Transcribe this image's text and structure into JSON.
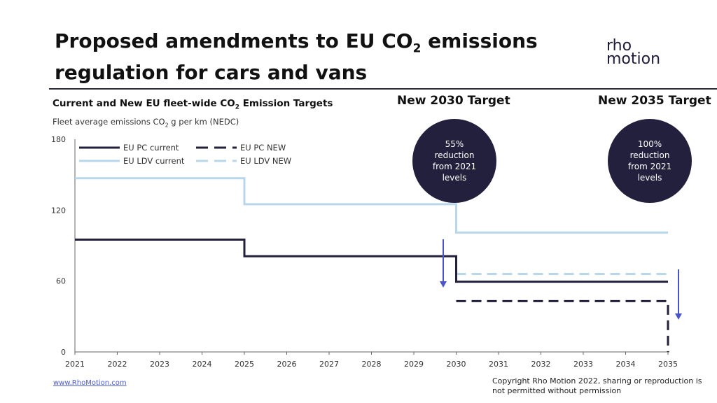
{
  "slide": {
    "title_line1": "Proposed amendments to EU CO",
    "title_sub": "2",
    "title_line1_end": " emissions",
    "title_line2": "regulation for cars and vans",
    "logo_line1": "rho",
    "logo_line2": "motion",
    "footer_link": "www.RhoMotion.com",
    "copyright": "Copyright Rho Motion 2022, sharing or reproduction is not permitted without permission"
  },
  "targets": [
    {
      "label": "New 2030 Target",
      "badge": "55%\nreduction\nfrom 2021\nlevels"
    },
    {
      "label": "New 2035 Target",
      "badge": "100%\nreduction\nfrom 2021\nlevels"
    }
  ],
  "colors": {
    "pc": "#22203d",
    "ldv": "#b8d7ea",
    "arrow": "#4a56c8",
    "badge": "#22203d"
  },
  "chart_data": {
    "type": "line",
    "title": "Current and New EU fleet-wide CO2 Emission Targets",
    "title_pre": "Current and New EU fleet-wide CO",
    "title_sub": "2",
    "title_post": " Emission Targets",
    "subtitle_pre": "Fleet average emissions CO",
    "subtitle_sub": "2",
    "subtitle_post": " g per km (NEDC)",
    "xlim": [
      2021,
      2035
    ],
    "ylim": [
      0,
      180
    ],
    "yticks": [
      "0",
      "60",
      "120",
      "180"
    ],
    "xticks": [
      "2021",
      "2022",
      "2023",
      "2024",
      "2025",
      "2026",
      "2027",
      "2028",
      "2029",
      "2030",
      "2031",
      "2032",
      "2033",
      "2034",
      "2035"
    ],
    "series": [
      {
        "name": "EU PC current",
        "style": "solid",
        "color": "#22203d",
        "points": [
          [
            2021,
            95
          ],
          [
            2025,
            95
          ],
          [
            2025,
            81
          ],
          [
            2030,
            81
          ],
          [
            2030,
            59.4
          ],
          [
            2035,
            59.4
          ]
        ]
      },
      {
        "name": "EU PC NEW",
        "style": "dashed",
        "color": "#22203d",
        "points": [
          [
            2030,
            43
          ],
          [
            2035,
            43
          ],
          [
            2035,
            0
          ]
        ]
      },
      {
        "name": "EU LDV current",
        "style": "solid",
        "color": "#b8d7ea",
        "points": [
          [
            2021,
            147
          ],
          [
            2025,
            147
          ],
          [
            2025,
            125
          ],
          [
            2030,
            125
          ],
          [
            2030,
            101
          ],
          [
            2035,
            101
          ]
        ]
      },
      {
        "name": "EU LDV NEW",
        "style": "dashed",
        "color": "#b8d7ea",
        "points": [
          [
            2030,
            66
          ],
          [
            2035,
            66
          ]
        ]
      }
    ]
  }
}
